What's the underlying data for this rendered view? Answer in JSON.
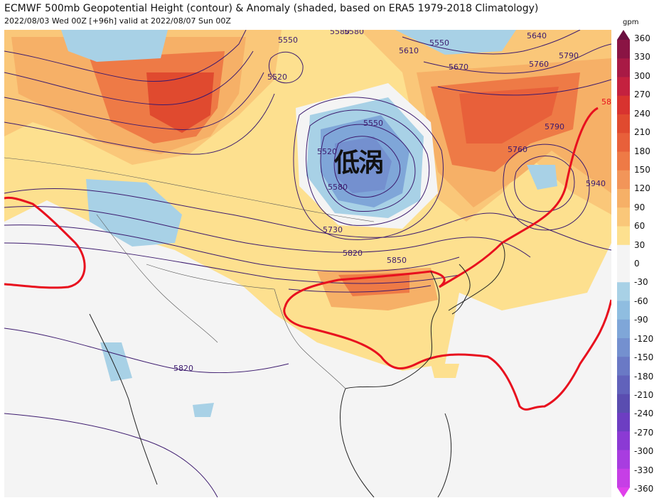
{
  "title": "ECMWF 500mb Geopotential Height (contour) & Anomaly (shaded, based on ERA5 1979-2018 Climatology)",
  "subtitle": "2022/08/03 Wed 00Z [+96h] valid at 2022/08/07 Sun 00Z",
  "colorbar": {
    "unit": "gpm",
    "ticks": [
      "360",
      "330",
      "300",
      "270",
      "240",
      "210",
      "180",
      "150",
      "120",
      "90",
      "60",
      "30",
      "0",
      "-30",
      "-60",
      "-90",
      "-120",
      "-150",
      "-180",
      "-210",
      "-240",
      "-270",
      "-300",
      "-330",
      "-360"
    ],
    "colors": [
      "#6b1040",
      "#8a1444",
      "#a81a45",
      "#c4213f",
      "#d8332f",
      "#e04a2f",
      "#e8603a",
      "#ee7a46",
      "#f29559",
      "#f6b067",
      "#fac779",
      "#fde08f",
      "#f4f4f4",
      "#f4f4f4",
      "#a8d1e6",
      "#8fbde0",
      "#7fa6d8",
      "#7490cf",
      "#6a79c5",
      "#6162bb",
      "#5a4db0",
      "#6d3ec2",
      "#8b3ad4",
      "#a83de0",
      "#c63fe6",
      "#e040eb"
    ]
  },
  "contour_labels": [
    "5580",
    "5550",
    "5520",
    "5580",
    "5610",
    "5550",
    "5640",
    "5670",
    "5760",
    "5790",
    "5520",
    "5550",
    "5580",
    "5730",
    "5820",
    "5850",
    "5760",
    "5790",
    "5940",
    "58",
    "5820"
  ],
  "feature_label": "低涡",
  "colors": {
    "subtropical_high_5880": "#e8101e",
    "contour": "#3c1a6e",
    "coast": "#222222",
    "border": "#555555"
  }
}
